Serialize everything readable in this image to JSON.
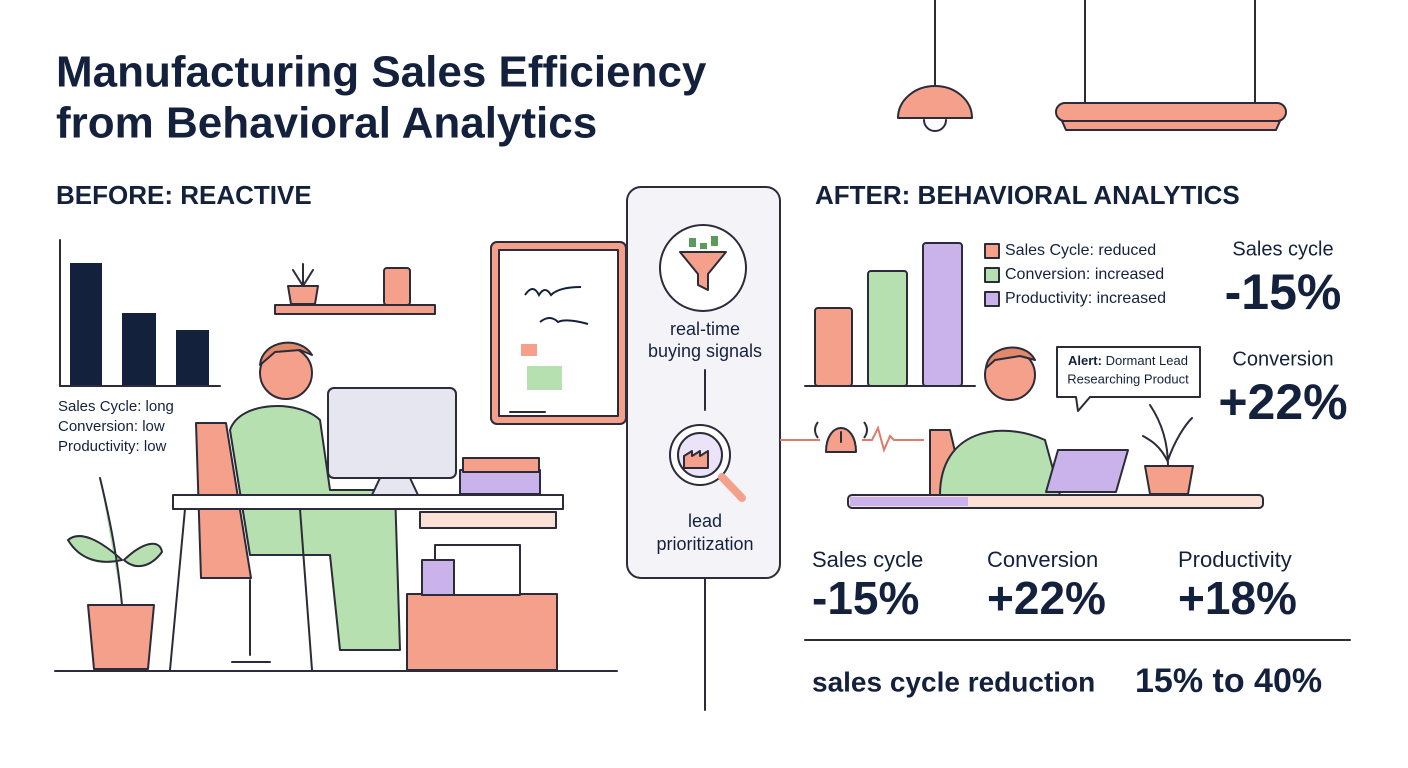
{
  "title_lines": [
    "Manufacturing Sales Efficiency",
    "from Behavioral Analytics"
  ],
  "before": {
    "heading": "BEFORE: REACTIVE",
    "labels": [
      "Sales Cycle: long",
      "Conversion: low",
      "Productivity: low"
    ]
  },
  "middle": {
    "steps": [
      {
        "lines": [
          "real-time",
          "buying signals"
        ]
      },
      {
        "lines": [
          "lead",
          "prioritization"
        ]
      }
    ]
  },
  "after": {
    "heading": "AFTER: BEHAVIORAL ANALYTICS",
    "legend": [
      "Sales Cycle: reduced",
      "Conversion: increased",
      "Productivity: increased"
    ],
    "alert": {
      "label": "Alert:",
      "lines": [
        "Dormant Lead",
        "Researching Product"
      ]
    },
    "side_stats": [
      {
        "label": "Sales cycle",
        "value": "-15%"
      },
      {
        "label": "Conversion",
        "value": "+22%"
      }
    ],
    "stats": [
      {
        "label": "Sales cycle",
        "value": "-15%"
      },
      {
        "label": "Conversion",
        "value": "+22%"
      },
      {
        "label": "Productivity",
        "value": "+18%"
      }
    ],
    "footer": {
      "label": "sales cycle reduction",
      "value": "15% to 40%"
    }
  }
}
